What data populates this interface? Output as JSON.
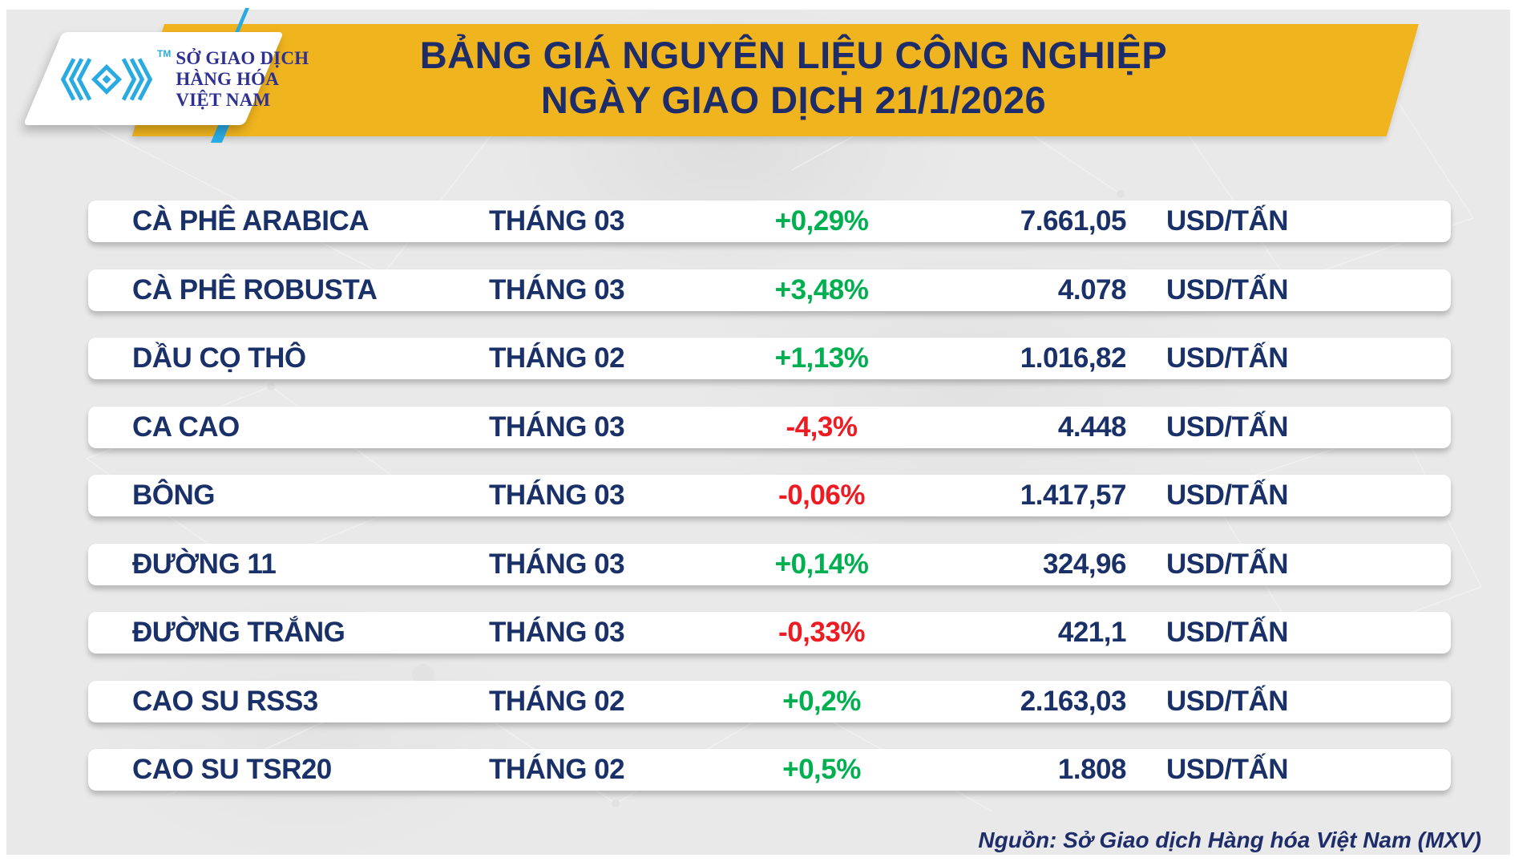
{
  "colors": {
    "accent_yellow": "#F0B41E",
    "title_navy": "#1E2D69",
    "row_navy": "#1A3069",
    "positive_green": "#00B050",
    "negative_red": "#EE1B22",
    "logo_cyan": "#29ABE2",
    "logo_text_navy": "#2E3192",
    "background_gray": "#E9E9E9"
  },
  "logo": {
    "tm": "TM",
    "exchange_name_line1": "SỞ GIAO DỊCH",
    "exchange_name_line2": "HÀNG HÓA",
    "exchange_name_line3": "VIỆT NAM",
    "mark_icon": "mxv-nested-chevrons-icon"
  },
  "header": {
    "title_line1": "BẢNG GIÁ NGUYÊN LIỆU CÔNG NGHIỆP",
    "title_line2": "NGÀY GIAO DỊCH 21/1/2026"
  },
  "table": {
    "rows": [
      {
        "name": "CÀ PHÊ ARABICA",
        "month": "THÁNG 03",
        "change": "+0,29%",
        "direction": "up",
        "price": "7.661,05",
        "unit": "USD/TẤN"
      },
      {
        "name": "CÀ PHÊ ROBUSTA",
        "month": "THÁNG 03",
        "change": "+3,48%",
        "direction": "up",
        "price": "4.078",
        "unit": "USD/TẤN"
      },
      {
        "name": "DẦU CỌ THÔ",
        "month": "THÁNG 02",
        "change": "+1,13%",
        "direction": "up",
        "price": "1.016,82",
        "unit": "USD/TẤN"
      },
      {
        "name": "CA CAO",
        "month": "THÁNG 03",
        "change": "-4,3%",
        "direction": "down",
        "price": "4.448",
        "unit": "USD/TẤN"
      },
      {
        "name": "BÔNG",
        "month": "THÁNG 03",
        "change": "-0,06%",
        "direction": "down",
        "price": "1.417,57",
        "unit": "USD/TẤN"
      },
      {
        "name": "ĐƯỜNG 11",
        "month": "THÁNG 03",
        "change": "+0,14%",
        "direction": "up",
        "price": "324,96",
        "unit": "USD/TẤN"
      },
      {
        "name": "ĐƯỜNG TRẮNG",
        "month": "THÁNG 03",
        "change": "-0,33%",
        "direction": "down",
        "price": "421,1",
        "unit": "USD/TẤN"
      },
      {
        "name": "CAO SU RSS3",
        "month": "THÁNG 02",
        "change": "+0,2%",
        "direction": "up",
        "price": "2.163,03",
        "unit": "USD/TẤN"
      },
      {
        "name": "CAO SU TSR20",
        "month": "THÁNG 02",
        "change": "+0,5%",
        "direction": "up",
        "price": "1.808",
        "unit": "USD/TẤN"
      }
    ]
  },
  "footer": {
    "source": "Nguồn: Sở Giao dịch Hàng hóa Việt Nam (MXV)"
  },
  "chart_data": {
    "type": "table",
    "title": "BẢNG GIÁ NGUYÊN LIỆU CÔNG NGHIỆP — NGÀY GIAO DỊCH 21/1/2026",
    "columns": [
      "commodity",
      "contract_month",
      "change_percent",
      "price",
      "unit"
    ],
    "rows": [
      [
        "CÀ PHÊ ARABICA",
        "THÁNG 03",
        0.29,
        7661.05,
        "USD/TẤN"
      ],
      [
        "CÀ PHÊ ROBUSTA",
        "THÁNG 03",
        3.48,
        4078,
        "USD/TẤN"
      ],
      [
        "DẦU CỌ THÔ",
        "THÁNG 02",
        1.13,
        1016.82,
        "USD/TẤN"
      ],
      [
        "CA CAO",
        "THÁNG 03",
        -4.3,
        4448,
        "USD/TẤN"
      ],
      [
        "BÔNG",
        "THÁNG 03",
        -0.06,
        1417.57,
        "USD/TẤN"
      ],
      [
        "ĐƯỜNG 11",
        "THÁNG 03",
        0.14,
        324.96,
        "USD/TẤN"
      ],
      [
        "ĐƯỜNG TRẮNG",
        "THÁNG 03",
        -0.33,
        421.1,
        "USD/TẤN"
      ],
      [
        "CAO SU RSS3",
        "THÁNG 02",
        0.2,
        2163.03,
        "USD/TẤN"
      ],
      [
        "CAO SU TSR20",
        "THÁNG 02",
        0.5,
        1808,
        "USD/TẤN"
      ]
    ],
    "source_note": "Nguồn: Sở Giao dịch Hàng hóa Việt Nam (MXV)"
  }
}
